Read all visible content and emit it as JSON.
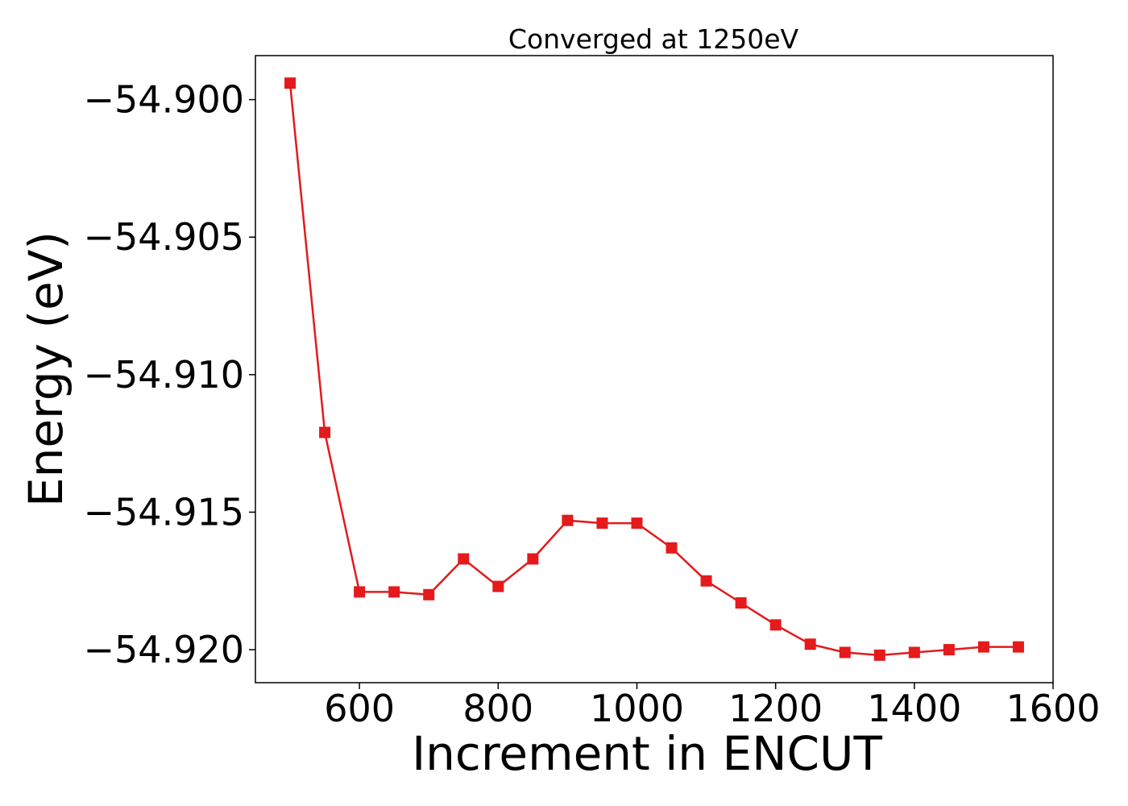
{
  "chart_data": {
    "type": "line",
    "title": "Converged at 1250eV",
    "xlabel": "Increment in ENCUT",
    "ylabel": "Energy (eV)",
    "xlim": [
      450,
      1600
    ],
    "ylim": [
      -54.9212,
      -54.8984
    ],
    "x_ticks": [
      600,
      800,
      1000,
      1200,
      1400,
      1600
    ],
    "x_tick_labels": [
      "600",
      "800",
      "1000",
      "1200",
      "1400",
      "1600"
    ],
    "y_ticks": [
      -54.9,
      -54.905,
      -54.91,
      -54.915,
      -54.92
    ],
    "y_tick_labels": [
      "−54.900",
      "−54.905",
      "−54.910",
      "−54.915",
      "−54.920"
    ],
    "grid": false,
    "legend": false,
    "series": [
      {
        "color": "#e41a1c",
        "marker": "square",
        "x": [
          500,
          550,
          600,
          650,
          700,
          750,
          800,
          850,
          900,
          950,
          1000,
          1050,
          1100,
          1150,
          1200,
          1250,
          1300,
          1350,
          1400,
          1450,
          1500,
          1550
        ],
        "y": [
          -54.8994,
          -54.9121,
          -54.9179,
          -54.9179,
          -54.918,
          -54.9167,
          -54.9177,
          -54.9167,
          -54.9153,
          -54.9154,
          -54.9154,
          -54.9163,
          -54.9175,
          -54.9183,
          -54.9191,
          -54.9198,
          -54.9201,
          -54.9202,
          -54.9201,
          -54.92,
          -54.9199,
          -54.9199
        ]
      }
    ]
  }
}
